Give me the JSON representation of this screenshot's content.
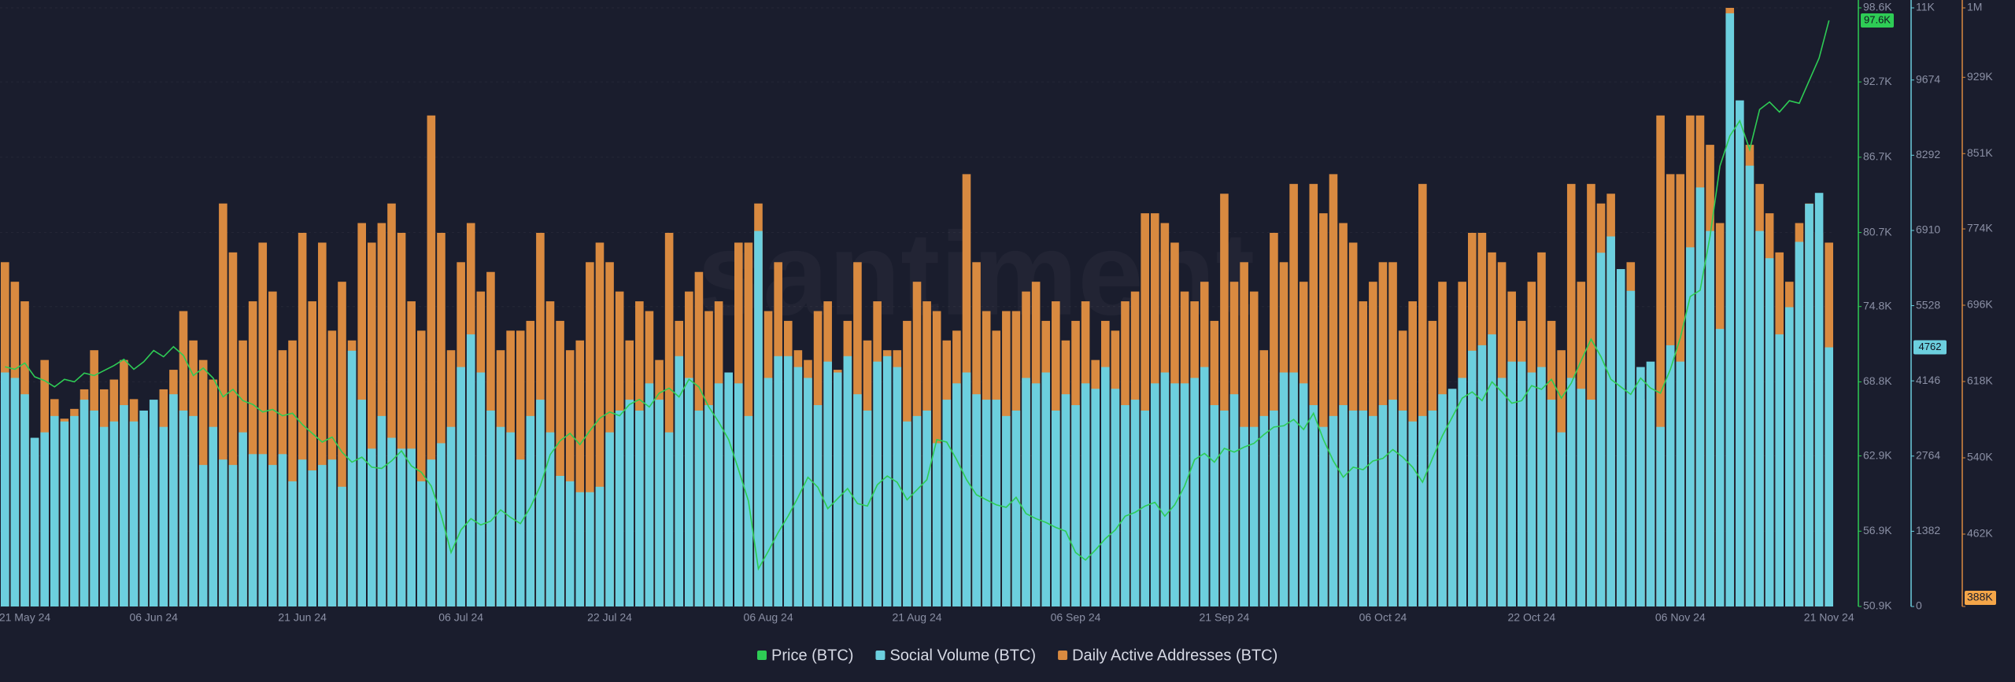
{
  "chart_data": {
    "type": "combo",
    "watermark": "santiment",
    "grid": true,
    "categories": [
      null,
      null,
      "21 May 24",
      null,
      null,
      null,
      null,
      null,
      null,
      null,
      null,
      null,
      null,
      null,
      null,
      "06 Jun 24",
      null,
      null,
      null,
      null,
      null,
      null,
      null,
      null,
      null,
      null,
      null,
      null,
      null,
      null,
      "21 Jun 24",
      null,
      null,
      null,
      null,
      null,
      null,
      null,
      null,
      null,
      null,
      null,
      null,
      null,
      null,
      null,
      "06 Jul 24",
      null,
      null,
      null,
      null,
      null,
      null,
      null,
      null,
      null,
      null,
      null,
      null,
      null,
      null,
      "22 Jul 24",
      null,
      null,
      null,
      null,
      null,
      null,
      null,
      null,
      null,
      null,
      null,
      null,
      null,
      null,
      null,
      "06 Aug 24",
      null,
      null,
      null,
      null,
      null,
      null,
      null,
      null,
      null,
      null,
      null,
      null,
      null,
      null,
      "21 Aug 24",
      null,
      null,
      null,
      null,
      null,
      null,
      null,
      null,
      null,
      null,
      null,
      null,
      null,
      null,
      null,
      "06 Sep 24",
      null,
      null,
      null,
      null,
      null,
      null,
      null,
      null,
      null,
      null,
      null,
      null,
      null,
      null,
      "21 Sep 24",
      null,
      null,
      null,
      null,
      null,
      null,
      null,
      null,
      null,
      null,
      null,
      null,
      null,
      null,
      null,
      "06 Oct 24",
      null,
      null,
      null,
      null,
      null,
      null,
      null,
      null,
      null,
      null,
      null,
      null,
      null,
      null,
      "22 Oct 24",
      null,
      null,
      null,
      null,
      null,
      null,
      null,
      null,
      null,
      null,
      null,
      null,
      null,
      null,
      "06 Nov 24",
      null,
      null,
      null,
      null,
      null,
      null,
      null,
      null,
      null,
      null,
      null,
      null,
      null,
      null,
      "21 Nov 24"
    ],
    "ylim": [
      50900,
      98600
    ],
    "yticks": [
      {
        "value": 50900,
        "label": "50.9K"
      },
      {
        "value": 56900,
        "label": "56.9K"
      },
      {
        "value": 62900,
        "label": "62.9K"
      },
      {
        "value": 68800,
        "label": "68.8K"
      },
      {
        "value": 74800,
        "label": "74.8K"
      },
      {
        "value": 80700,
        "label": "80.7K"
      },
      {
        "value": 86700,
        "label": "86.7K"
      },
      {
        "value": 92700,
        "label": "92.7K"
      },
      {
        "value": 98600,
        "label": "98.6K"
      }
    ],
    "y2lim": [
      0,
      11000
    ],
    "y2ticks": [
      0,
      1382,
      2764,
      4146,
      5528,
      6910,
      8292,
      9674,
      {
        "value": 11000,
        "label": "11K"
      }
    ],
    "y3lim": [
      388000,
      1000000
    ],
    "y3ticks": [
      {
        "value": 388000,
        "label": "388K"
      },
      {
        "value": 462000,
        "label": "462K"
      },
      {
        "value": 540000,
        "label": "540K"
      },
      {
        "value": 618000,
        "label": "618K"
      },
      {
        "value": 696000,
        "label": "696K"
      },
      {
        "value": 774000,
        "label": "774K"
      },
      {
        "value": 851000,
        "label": "851K"
      },
      {
        "value": 929000,
        "label": "929K"
      },
      {
        "value": 1000000,
        "label": "1M"
      }
    ],
    "series": [
      {
        "name": "Price (BTC)",
        "color": "#2ecc55",
        "kind": "line",
        "axis": "y",
        "last_label": "97.6K",
        "values": [
          70000,
          69800,
          70300,
          69200,
          68900,
          68400,
          69000,
          68800,
          69500,
          69300,
          69700,
          70100,
          70600,
          69800,
          70400,
          71300,
          70800,
          71600,
          70900,
          69300,
          69900,
          69100,
          67600,
          68200,
          67300,
          67000,
          66400,
          66600,
          66100,
          66300,
          65400,
          64700,
          64000,
          64400,
          63200,
          62400,
          62800,
          62000,
          61900,
          62500,
          63300,
          62100,
          61600,
          60500,
          58200,
          55200,
          57000,
          57900,
          57400,
          57700,
          58600,
          58000,
          57500,
          58800,
          60500,
          63000,
          64100,
          64700,
          63800,
          64900,
          65900,
          66400,
          66100,
          67000,
          67400,
          66800,
          67900,
          68300,
          67600,
          69000,
          68400,
          66800,
          65600,
          64200,
          61800,
          59300,
          53900,
          55300,
          56800,
          58100,
          59600,
          61200,
          60400,
          58700,
          59500,
          60300,
          59100,
          58900,
          60600,
          61300,
          60800,
          59400,
          60200,
          61000,
          64200,
          64000,
          62600,
          61000,
          59800,
          59400,
          59000,
          58800,
          59600,
          58300,
          57900,
          57600,
          57200,
          56900,
          55200,
          54600,
          55400,
          56300,
          57000,
          58100,
          58400,
          58900,
          59200,
          58100,
          59000,
          60500,
          62600,
          63100,
          62400,
          63500,
          63200,
          63600,
          63900,
          64600,
          65200,
          65300,
          65800,
          65000,
          66300,
          64200,
          62500,
          61200,
          62000,
          61800,
          62500,
          62700,
          63400,
          62800,
          62000,
          60800,
          62700,
          64500,
          66000,
          67500,
          68000,
          67300,
          68800,
          68000,
          67100,
          67300,
          68500,
          68200,
          69000,
          67500,
          68700,
          70500,
          72200,
          70800,
          69000,
          68400,
          67800,
          69100,
          68300,
          67900,
          69800,
          72300,
          75600,
          76100,
          80400,
          86000,
          88400,
          89600,
          87300,
          90500,
          91100,
          90300,
          91200,
          91000,
          92800,
          94600,
          97600
        ]
      },
      {
        "name": "Social Volume (BTC)",
        "color": "#6ccfde",
        "kind": "bar",
        "axis": "y2",
        "last_label": "4762",
        "values": [
          4300,
          4200,
          3900,
          3100,
          3200,
          3500,
          3400,
          3500,
          3800,
          3600,
          3300,
          3400,
          3700,
          3400,
          3600,
          3800,
          3300,
          3900,
          3600,
          3500,
          2600,
          3300,
          2700,
          2600,
          3200,
          2800,
          2800,
          2600,
          2800,
          2300,
          2700,
          2500,
          2600,
          2700,
          2200,
          4700,
          3800,
          2900,
          3500,
          3100,
          2900,
          2900,
          2300,
          2700,
          3000,
          3300,
          4400,
          5000,
          4300,
          3600,
          3300,
          3200,
          2700,
          3500,
          3800,
          3200,
          2400,
          2300,
          2100,
          2100,
          2200,
          3200,
          3600,
          3800,
          3600,
          4100,
          3800,
          3200,
          4600,
          4200,
          3600,
          3700,
          4100,
          4300,
          4100,
          3500,
          6900,
          4200,
          4600,
          4600,
          4400,
          4200,
          3700,
          4500,
          4300,
          4600,
          3900,
          3600,
          4500,
          4600,
          4400,
          3400,
          3500,
          3600,
          3000,
          3800,
          4100,
          4300,
          3900,
          3800,
          3800,
          3500,
          3600,
          4200,
          4100,
          4300,
          3600,
          3900,
          3700,
          4100,
          4000,
          4400,
          4000,
          3700,
          3800,
          3600,
          4100,
          4300,
          4100,
          4100,
          4200,
          4400,
          3700,
          3600,
          3900,
          3300,
          3300,
          3500,
          3600,
          4300,
          4300,
          4100,
          3700,
          3300,
          3500,
          3700,
          3600,
          3600,
          3500,
          3700,
          3800,
          3600,
          3400,
          3500,
          3600,
          3900,
          4000,
          4200,
          4700,
          4800,
          5000,
          4200,
          4500,
          4500,
          4300,
          4400,
          3800,
          3200,
          4200,
          4000,
          3800,
          6500,
          6800,
          6200,
          5800,
          4400,
          4500,
          3300,
          4800,
          4500,
          6600,
          7700,
          6900,
          5100,
          10900,
          9300,
          8100,
          6900,
          6400,
          5000,
          5500,
          6700,
          7400,
          7600,
          4762
        ]
      },
      {
        "name": "Daily Active Addresses (BTC)",
        "color": "#d98a40",
        "kind": "bar",
        "axis": "y3",
        "values": [
          740000,
          720000,
          700000,
          560000,
          640000,
          600000,
          580000,
          590000,
          610000,
          650000,
          610000,
          620000,
          640000,
          600000,
          540000,
          570000,
          610000,
          630000,
          690000,
          660000,
          640000,
          620000,
          800000,
          750000,
          660000,
          700000,
          760000,
          710000,
          650000,
          660000,
          770000,
          700000,
          760000,
          670000,
          720000,
          660000,
          780000,
          760000,
          780000,
          800000,
          770000,
          700000,
          670000,
          890000,
          770000,
          650000,
          740000,
          780000,
          710000,
          730000,
          650000,
          670000,
          670000,
          680000,
          770000,
          700000,
          680000,
          650000,
          660000,
          740000,
          760000,
          740000,
          710000,
          660000,
          700000,
          690000,
          640000,
          770000,
          680000,
          710000,
          730000,
          690000,
          700000,
          610000,
          760000,
          760000,
          800000,
          690000,
          740000,
          680000,
          650000,
          640000,
          690000,
          700000,
          630000,
          680000,
          740000,
          660000,
          700000,
          650000,
          650000,
          680000,
          720000,
          700000,
          690000,
          660000,
          670000,
          830000,
          740000,
          690000,
          670000,
          690000,
          690000,
          710000,
          720000,
          680000,
          700000,
          660000,
          680000,
          700000,
          640000,
          680000,
          670000,
          700000,
          710000,
          790000,
          790000,
          780000,
          760000,
          710000,
          700000,
          720000,
          680000,
          810000,
          720000,
          740000,
          710000,
          650000,
          770000,
          740000,
          820000,
          720000,
          820000,
          790000,
          830000,
          780000,
          760000,
          700000,
          720000,
          740000,
          740000,
          670000,
          700000,
          820000,
          680000,
          720000,
          600000,
          720000,
          770000,
          770000,
          750000,
          740000,
          710000,
          680000,
          720000,
          750000,
          680000,
          650000,
          820000,
          720000,
          820000,
          800000,
          810000,
          720000,
          740000,
          600000,
          630000,
          890000,
          830000,
          830000,
          890000,
          890000,
          860000,
          780000,
          1000000,
          880000,
          860000,
          820000,
          790000,
          750000,
          720000,
          780000,
          800000,
          770000,
          760000
        ]
      }
    ]
  }
}
